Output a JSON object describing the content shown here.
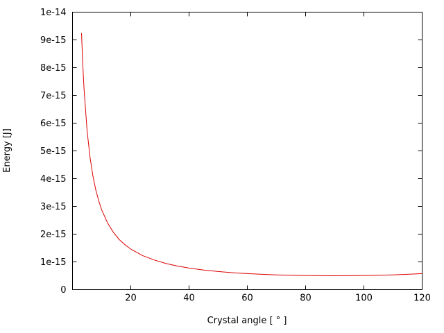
{
  "figure": {
    "background": "#ffffff",
    "border_color": "#000000",
    "text_color": "#000000"
  },
  "chart_data": {
    "type": "line",
    "title": "",
    "xlabel": "Crystal angle [ ° ]",
    "ylabel": "Energy [J]",
    "xlim": [
      0,
      120
    ],
    "ylim": [
      0,
      1e-14
    ],
    "grid": false,
    "legend": "none",
    "x_ticks": [
      {
        "value": 20,
        "label": "20"
      },
      {
        "value": 40,
        "label": "40"
      },
      {
        "value": 60,
        "label": "60"
      },
      {
        "value": 80,
        "label": "80"
      },
      {
        "value": 100,
        "label": "100"
      },
      {
        "value": 120,
        "label": "120"
      }
    ],
    "y_ticks": [
      {
        "value": 0,
        "label": "0"
      },
      {
        "value": 1e-15,
        "label": "1e-15"
      },
      {
        "value": 2e-15,
        "label": "2e-15"
      },
      {
        "value": 3e-15,
        "label": "3e-15"
      },
      {
        "value": 4e-15,
        "label": "4e-15"
      },
      {
        "value": 5e-15,
        "label": "5e-15"
      },
      {
        "value": 6e-15,
        "label": "6e-15"
      },
      {
        "value": 7e-15,
        "label": "7e-15"
      },
      {
        "value": 8e-15,
        "label": "8e-15"
      },
      {
        "value": 9e-15,
        "label": "9e-15"
      },
      {
        "value": 1e-14,
        "label": "1e-14"
      }
    ],
    "series": [
      {
        "name": "energy-vs-crystal-angle",
        "color": "#dd0000",
        "x": [
          3.1,
          3.4,
          3.7,
          4,
          5,
          6,
          7,
          8,
          9,
          10,
          12,
          14,
          16,
          18,
          20,
          24,
          28,
          32,
          36,
          40,
          45,
          50,
          55,
          60,
          65,
          70,
          75,
          80,
          85,
          90,
          95,
          100,
          105,
          110,
          115,
          120
        ],
        "y": [
          9.25e-15,
          8.43e-15,
          7.75e-15,
          7.17e-15,
          5.74e-15,
          4.78e-15,
          4.1e-15,
          3.59e-15,
          3.2e-15,
          2.88e-15,
          2.41e-15,
          2.07e-15,
          1.81e-15,
          1.62e-15,
          1.46e-15,
          1.23e-15,
          1.07e-15,
          9.43e-16,
          8.51e-16,
          7.78e-16,
          7.07e-16,
          6.53e-16,
          6.1e-16,
          5.77e-16,
          5.52e-16,
          5.32e-16,
          5.18e-16,
          5.08e-16,
          5.02e-16,
          5e-16,
          5.02e-16,
          5.08e-16,
          5.18e-16,
          5.32e-16,
          5.52e-16,
          5.77e-16
        ]
      }
    ]
  },
  "layout_hints": {
    "tick_direction": "in",
    "tick_mirror": true
  }
}
